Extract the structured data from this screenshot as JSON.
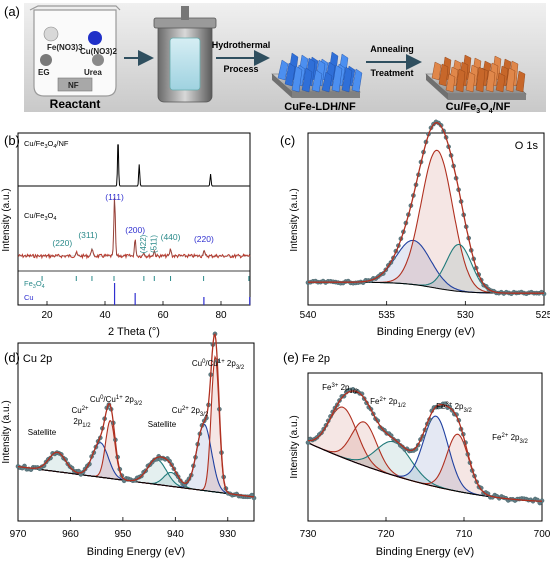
{
  "colors": {
    "frame": "#000000",
    "xrd_top": "#000000",
    "xrd_bottom": "#c0392b",
    "xps_points": "#607d85",
    "cu_label": "#3030d0",
    "fe3o4_label": "#2a8a8a",
    "envelope": "#b03020",
    "blue_fit": "#2040a0",
    "teal_fit": "#207a7a",
    "baseline": "#000000"
  },
  "panel_a": {
    "label": "(a)",
    "reactant_caption": "Reactant",
    "beaker_items": [
      "Fe(NO3)3",
      "Cu(NO3)2",
      "EG",
      "Urea",
      "NF"
    ],
    "step1_label": "Hydrothermal",
    "step1_label2": "Process",
    "step2_label": "Annealing",
    "step2_label2": "Treatment",
    "product1_caption": "CuFe-LDH/NF",
    "product2_caption": "Cu/Fe3O4/NF",
    "icons": [
      "beaker-icon",
      "autoclave-icon",
      "ldh-nanosheet-array-icon",
      "cu-fe3o4-array-icon",
      "arrow-icon"
    ]
  },
  "chart_data": [
    {
      "panel": "(b)",
      "type": "line",
      "xlabel": "2 Theta (°)",
      "ylabel": "Intensity (a.u.)",
      "xlim": [
        10,
        90
      ],
      "xticks": [
        20,
        40,
        60,
        80
      ],
      "series": [
        {
          "name": "Cu/Fe3O4/NF",
          "peaks": [
            [
              44.5,
              100
            ],
            [
              51.8,
              45
            ],
            [
              76.4,
              25
            ]
          ]
        },
        {
          "name": "Cu/Fe3O4",
          "peaks": [
            [
              30.1,
              6
            ],
            [
              35.5,
              14
            ],
            [
              43.3,
              100
            ],
            [
              50.4,
              28
            ],
            [
              53.4,
              6
            ],
            [
              57.0,
              9
            ],
            [
              62.6,
              12
            ],
            [
              74.1,
              10
            ]
          ]
        }
      ],
      "annotations": [
        {
          "text": "(111)",
          "x": 43.3,
          "phase": "Cu"
        },
        {
          "text": "(220)",
          "x": 30.1,
          "phase": "Fe3O4"
        },
        {
          "text": "(311)",
          "x": 35.5,
          "phase": "Fe3O4"
        },
        {
          "text": "(200)",
          "x": 50.4,
          "phase": "Cu"
        },
        {
          "text": "(422)",
          "x": 53.4,
          "phase": "Fe3O4"
        },
        {
          "text": "(511)",
          "x": 57.0,
          "phase": "Fe3O4"
        },
        {
          "text": "(440)",
          "x": 62.6,
          "phase": "Fe3O4"
        },
        {
          "text": "(220)",
          "x": 74.1,
          "phase": "Cu"
        }
      ],
      "reference_patterns": [
        {
          "name": "Fe3O4",
          "lines": [
            18.3,
            30.1,
            35.5,
            43.1,
            53.4,
            57.0,
            62.6,
            74.0,
            89.6
          ]
        },
        {
          "name": "Cu",
          "lines": [
            43.3,
            50.4,
            74.1,
            89.9
          ]
        }
      ]
    },
    {
      "panel": "(c)",
      "type": "scatter",
      "title": "O 1s",
      "xlabel": "Binding Energy (eV)",
      "ylabel": "Intensity (a.u.)",
      "xlim": [
        540,
        525
      ],
      "xticks": [
        540,
        535,
        530,
        525
      ],
      "components": [
        {
          "center": 533.3,
          "height": 0.32,
          "width": 1.1
        },
        {
          "center": 531.8,
          "height": 1.0,
          "width": 1.0
        },
        {
          "center": 530.4,
          "height": 0.34,
          "width": 0.8
        }
      ]
    },
    {
      "panel": "(d)",
      "type": "scatter",
      "title": "Cu 2p",
      "xlabel": "Binding Energy (eV)",
      "ylabel": "Intensity (a.u.)",
      "xlim": [
        970,
        925
      ],
      "xticks": [
        970,
        960,
        950,
        940,
        930
      ],
      "annotations": [
        {
          "text": "Satellite",
          "x": 962.5
        },
        {
          "text": "Cu2+ 2p1/2",
          "x": 954.3
        },
        {
          "text": "Cu0/Cu1+ 2p3/2",
          "x": 952.4
        },
        {
          "text": "Satellite",
          "x": 943.5
        },
        {
          "text": "Cu2+ 2p3/2",
          "x": 934.5
        },
        {
          "text": "Cu0/Cu1+ 2p3/2",
          "x": 932.5
        }
      ],
      "components": [
        {
          "center": 962.5,
          "height": 0.14,
          "width": 1.6
        },
        {
          "center": 954.3,
          "height": 0.25,
          "width": 1.5
        },
        {
          "center": 952.4,
          "height": 0.42,
          "width": 0.9
        },
        {
          "center": 943.5,
          "height": 0.18,
          "width": 1.8
        },
        {
          "center": 940.8,
          "height": 0.1,
          "width": 1.4
        },
        {
          "center": 934.5,
          "height": 0.48,
          "width": 1.4
        },
        {
          "center": 932.4,
          "height": 0.98,
          "width": 0.75
        }
      ]
    },
    {
      "panel": "(e)",
      "type": "scatter",
      "title": "Fe 2p",
      "xlabel": "Binding Energy (eV)",
      "ylabel": "Intensity (a.u.)",
      "xlim": [
        730,
        700
      ],
      "xticks": [
        730,
        720,
        710,
        700
      ],
      "annotations": [
        {
          "text": "Fe3+ 2p1/2",
          "x": 725.2
        },
        {
          "text": "Fe2+ 2p1/2",
          "x": 723.0
        },
        {
          "text": "Fe3+ 2p3/2",
          "x": 713.3
        },
        {
          "text": "Fe2+ 2p3/2",
          "x": 710.5
        }
      ],
      "components": [
        {
          "center": 725.5,
          "height": 0.3,
          "width": 1.8
        },
        {
          "center": 722.8,
          "height": 0.26,
          "width": 1.6
        },
        {
          "center": 719.0,
          "height": 0.2,
          "width": 2.2
        },
        {
          "center": 713.6,
          "height": 0.42,
          "width": 1.6
        },
        {
          "center": 710.8,
          "height": 0.34,
          "width": 1.4
        }
      ]
    }
  ]
}
